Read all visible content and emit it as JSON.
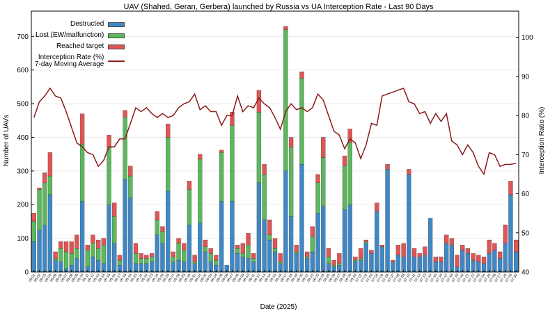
{
  "chart_data": {
    "type": "bar",
    "stacked": true,
    "title": "UAV (Shahed, Geran, Gerbera) launched by Russia vs UA Interception Rate - Last 90 Days",
    "xlabel": "Date (2025)",
    "ylabel": "Number of UAVs",
    "y2label": "Interception Ratio (%)",
    "categories": [
      "05-01",
      "05-02",
      "05-03",
      "05-04",
      "05-05",
      "05-06",
      "05-07",
      "05-08",
      "05-09",
      "05-10",
      "05-11",
      "05-12",
      "05-13",
      "05-14",
      "05-15",
      "05-16",
      "05-17",
      "05-18",
      "05-19",
      "05-20",
      "05-21",
      "05-22",
      "05-23",
      "05-24",
      "05-25",
      "05-26",
      "05-27",
      "05-28",
      "05-29",
      "05-30",
      "05-31",
      "06-01",
      "06-02",
      "06-03",
      "06-04",
      "06-05",
      "06-06",
      "06-07",
      "06-08",
      "06-09",
      "06-10",
      "06-11",
      "06-12",
      "06-13",
      "06-14",
      "06-15",
      "06-16",
      "06-17",
      "06-18",
      "06-19",
      "06-20",
      "06-21",
      "06-22",
      "06-23",
      "06-24",
      "06-25",
      "06-26",
      "06-27",
      "06-28",
      "06-29",
      "06-30",
      "07-01",
      "07-02",
      "07-03",
      "07-04",
      "07-05",
      "07-06",
      "07-07",
      "07-08",
      "07-09",
      "07-10",
      "07-11",
      "07-12",
      "07-13",
      "07-14",
      "07-15",
      "07-16",
      "07-17",
      "07-18",
      "07-19",
      "07-20",
      "07-21",
      "07-22",
      "07-23",
      "07-24",
      "07-25",
      "07-26",
      "07-27",
      "07-28",
      "07-29",
      "07-30"
    ],
    "series": [
      {
        "name": "Destructed",
        "color": "#3f88c5",
        "values": [
          90,
          125,
          140,
          230,
          35,
          30,
          10,
          20,
          40,
          210,
          15,
          45,
          35,
          25,
          200,
          85,
          20,
          275,
          220,
          25,
          25,
          25,
          30,
          110,
          85,
          240,
          30,
          35,
          30,
          140,
          25,
          145,
          60,
          30,
          20,
          210,
          20,
          210,
          55,
          45,
          40,
          30,
          265,
          155,
          95,
          60,
          25,
          300,
          165,
          55,
          320,
          40,
          60,
          175,
          195,
          25,
          15,
          20,
          185,
          200,
          30,
          35,
          85,
          55,
          180,
          75,
          305,
          30,
          50,
          45,
          290,
          45,
          45,
          50,
          160,
          30,
          30,
          85,
          80,
          15,
          65,
          55,
          35,
          30,
          25,
          55,
          65,
          40,
          85,
          230,
          60
        ]
      },
      {
        "name": "Lost (EW/malfunction)",
        "color": "#5cb85c",
        "values": [
          60,
          120,
          125,
          55,
          5,
          40,
          50,
          35,
          30,
          170,
          50,
          40,
          35,
          55,
          170,
          80,
          15,
          185,
          65,
          30,
          15,
          15,
          15,
          45,
          35,
          160,
          15,
          50,
          35,
          105,
          5,
          190,
          15,
          25,
          15,
          145,
          0,
          225,
          15,
          10,
          40,
          10,
          210,
          135,
          15,
          10,
          5,
          420,
          205,
          5,
          255,
          5,
          45,
          90,
          145,
          20,
          5,
          5,
          130,
          185,
          5,
          5,
          5,
          0,
          0,
          0,
          0,
          0,
          0,
          0,
          0,
          0,
          0,
          0,
          0,
          0,
          0,
          0,
          0,
          0,
          0,
          0,
          0,
          0,
          0,
          0,
          0,
          0,
          0,
          0,
          0
        ]
      },
      {
        "name": "Reached target",
        "color": "#e05555",
        "values": [
          25,
          5,
          30,
          70,
          20,
          20,
          30,
          35,
          40,
          90,
          15,
          25,
          25,
          20,
          37,
          40,
          15,
          20,
          30,
          30,
          15,
          10,
          10,
          25,
          15,
          40,
          15,
          15,
          20,
          25,
          20,
          15,
          20,
          15,
          15,
          7,
          0,
          40,
          10,
          30,
          35,
          15,
          65,
          30,
          45,
          30,
          25,
          10,
          30,
          20,
          20,
          15,
          30,
          25,
          60,
          25,
          15,
          30,
          30,
          40,
          10,
          30,
          5,
          10,
          25,
          5,
          15,
          5,
          30,
          40,
          15,
          25,
          10,
          25,
          0,
          15,
          15,
          25,
          20,
          35,
          15,
          15,
          20,
          20,
          20,
          40,
          20,
          20,
          55,
          40,
          35
        ]
      },
      {
        "name": "Interception Rate (%)\n7-day Moving Average",
        "color": "#8b1a1a",
        "type": "line",
        "axis": "y2",
        "values": [
          79.5,
          83.5,
          85,
          87,
          85,
          84.5,
          81,
          77,
          73,
          72,
          70.5,
          70,
          67,
          68.5,
          72,
          72,
          74,
          74,
          78,
          82,
          81,
          82,
          80.5,
          79.5,
          80.5,
          79.5,
          80,
          82,
          83,
          83.5,
          85.5,
          81.5,
          82.5,
          81,
          81,
          77.5,
          80,
          80,
          85,
          81,
          82.5,
          82,
          84.5,
          83,
          82,
          79.5,
          76.5,
          81,
          83,
          81.5,
          82,
          81,
          82,
          85.5,
          84,
          80,
          76,
          75,
          71.5,
          74,
          73,
          69,
          72.5,
          78,
          77.5,
          85,
          85.5,
          86,
          86.5,
          87,
          83.5,
          83,
          80.5,
          81,
          78,
          80.5,
          78.5,
          80.5,
          73.5,
          72.5,
          70,
          72.5,
          70.5,
          67,
          65,
          70.5,
          70,
          67,
          67.5,
          67.5,
          67.8
        ]
      }
    ],
    "ylim": [
      0,
      775
    ],
    "yticks": [
      0,
      100,
      200,
      300,
      400,
      500,
      600,
      700
    ],
    "y2lim": [
      40,
      106.7
    ],
    "y2ticks": [
      40,
      50,
      60,
      70,
      80,
      90,
      100
    ],
    "grid": true,
    "legend": "upper left"
  }
}
